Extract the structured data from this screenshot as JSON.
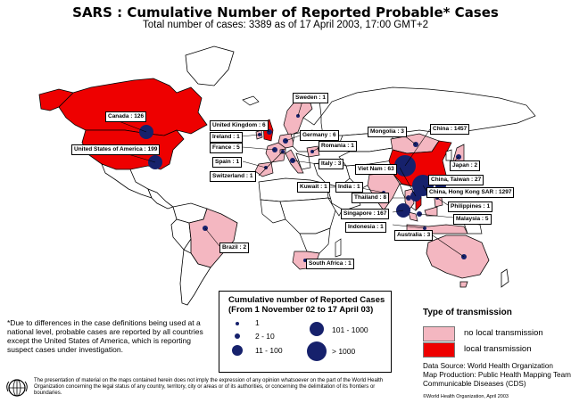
{
  "title": "SARS : Cumulative Number of Reported Probable* Cases",
  "subtitle": "Total number of cases: 3389 as of 17 April 2003, 17:00 GMT+2",
  "colors": {
    "ocean": "#ffffff",
    "land": "#ffffff",
    "no_local": "#f4b7c1",
    "local": "#ee0000",
    "dot": "#16216c"
  },
  "labels": [
    {
      "key": "canada",
      "text": "Canada : 126",
      "transmission": "local",
      "bubble": "101-1000"
    },
    {
      "key": "usa",
      "text": "United States of America : 199",
      "transmission": "local",
      "bubble": "101-1000"
    },
    {
      "key": "brazil",
      "text": "Brazil : 2",
      "transmission": "no-local",
      "bubble": "2-10"
    },
    {
      "key": "uk",
      "text": "United Kingdom : 6",
      "transmission": "local",
      "bubble": "2-10"
    },
    {
      "key": "ireland",
      "text": "Ireland : 1",
      "transmission": "no-local",
      "bubble": "1"
    },
    {
      "key": "france",
      "text": "France : 5",
      "transmission": "no-local",
      "bubble": "2-10"
    },
    {
      "key": "spain",
      "text": "Spain : 1",
      "transmission": "no-local",
      "bubble": "1"
    },
    {
      "key": "switzerland",
      "text": "Switzerland : 1",
      "transmission": "no-local",
      "bubble": "1"
    },
    {
      "key": "sweden",
      "text": "Sweden : 1",
      "transmission": "no-local",
      "bubble": "1"
    },
    {
      "key": "germany",
      "text": "Germany : 6",
      "transmission": "no-local",
      "bubble": "2-10"
    },
    {
      "key": "romania",
      "text": "Romania : 1",
      "transmission": "no-local",
      "bubble": "1"
    },
    {
      "key": "italy",
      "text": "Italy : 3",
      "transmission": "no-local",
      "bubble": "2-10"
    },
    {
      "key": "kuwait",
      "text": "Kuwait : 1",
      "transmission": "no-local",
      "bubble": "1"
    },
    {
      "key": "india",
      "text": "India : 1",
      "transmission": "no-local",
      "bubble": "1"
    },
    {
      "key": "south_africa",
      "text": "South Africa : 1",
      "transmission": "no-local",
      "bubble": "1"
    },
    {
      "key": "mongolia",
      "text": "Mongolia : 3",
      "transmission": "no-local",
      "bubble": "2-10"
    },
    {
      "key": "china",
      "text": "China : 1457",
      "transmission": "local",
      "bubble": ">1000"
    },
    {
      "key": "viet_nam",
      "text": "Viet Nam : 63",
      "transmission": "local",
      "bubble": "11-100"
    },
    {
      "key": "thailand",
      "text": "Thailand : 8",
      "transmission": "no-local",
      "bubble": "2-10"
    },
    {
      "key": "singapore",
      "text": "Singapore : 167",
      "transmission": "local",
      "bubble": "101-1000"
    },
    {
      "key": "indonesia",
      "text": "Indonesia : 1",
      "transmission": "no-local",
      "bubble": "1"
    },
    {
      "key": "japan",
      "text": "Japan : 2",
      "transmission": "no-local",
      "bubble": "2-10"
    },
    {
      "key": "taiwan",
      "text": "China, Taiwan : 27",
      "transmission": "local",
      "bubble": "11-100"
    },
    {
      "key": "hong_kong",
      "text": "China, Hong Kong SAR : 1297",
      "transmission": "local",
      "bubble": ">1000"
    },
    {
      "key": "philippines",
      "text": "Philippines : 1",
      "transmission": "no-local",
      "bubble": "1"
    },
    {
      "key": "malaysia",
      "text": "Malaysia : 5",
      "transmission": "no-local",
      "bubble": "2-10"
    },
    {
      "key": "australia",
      "text": "Australia : 3",
      "transmission": "no-local",
      "bubble": "2-10"
    }
  ],
  "legend": {
    "title_line1": "Cumulative number of Reported Cases",
    "title_line2": "(From 1 November 02 to 17 April 03)",
    "items": [
      "1",
      "2 - 10",
      "11 - 100",
      "101 - 1000",
      "> 1000"
    ]
  },
  "transmission_legend": {
    "title": "Type of transmission",
    "no_local": "no local transmission",
    "local": "local transmission"
  },
  "footnote": "*Due to differences in the case definitions being used at a national level, probable cases are reported by all countries except the United States of America, which is reporting suspect cases under investigation.",
  "disclaimer": "The presentation of material on the maps contained herein does not imply the expression of any opinion whatsoever on the part of the World Health Organization concerning the legal status of any country, territory, city or areas or of its authorities, or concerning the delimitation of its frontiers or boundaries.",
  "source": {
    "line1": "Data Source: World Health Organization",
    "line2": "Map Production: Public Health Mapping Team",
    "line3": "Communicable Diseases (CDS)"
  },
  "copyright": "©World Health Organization, April 2003"
}
